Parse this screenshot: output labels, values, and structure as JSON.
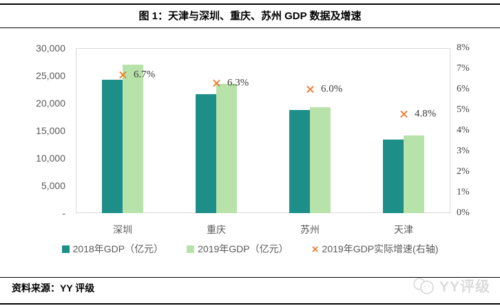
{
  "header": {
    "title": "图 1：天津与深圳、重庆、苏州 GDP 数据及增速"
  },
  "chart_data": {
    "type": "bar",
    "categories": [
      "深圳",
      "重庆",
      "苏州",
      "天津"
    ],
    "series": [
      {
        "name": "2018年GDP（亿元）",
        "type": "bar",
        "axis": "left",
        "values": [
          24200,
          21600,
          18700,
          13400
        ],
        "color": "#1E8E89"
      },
      {
        "name": "2019年GDP（亿元）",
        "type": "bar",
        "axis": "left",
        "values": [
          27000,
          23500,
          19200,
          14100
        ],
        "color": "#B7E3AA"
      },
      {
        "name": "2019年GDP实际增速(右轴)",
        "type": "scatter",
        "marker": "x",
        "axis": "right",
        "values": [
          6.7,
          6.3,
          6.0,
          4.8
        ],
        "labels": [
          "6.7%",
          "6.3%",
          "6.0%",
          "4.8%"
        ],
        "color": "#ED7D31"
      }
    ],
    "left_axis": {
      "min": 0,
      "max": 30000,
      "ticks": [
        "30,000",
        "25,000",
        "20,000",
        "15,000",
        "10,000",
        "5,000",
        "-"
      ]
    },
    "right_axis": {
      "min": 0,
      "max": 8,
      "ticks": [
        "8%",
        "7%",
        "6%",
        "5%",
        "4%",
        "3%",
        "2%",
        "1%",
        "0%"
      ]
    },
    "grid": false,
    "legend_position": "bottom",
    "colors": {
      "bar_2018": "#1E8E89",
      "bar_2019": "#B7E3AA",
      "growth_marker": "#ED7D31",
      "axis_text": "#595959",
      "plot_border": "#D9D9D9"
    }
  },
  "footer": {
    "source_label": "资料来源：YY 评级",
    "watermark_text": "YY评级"
  }
}
